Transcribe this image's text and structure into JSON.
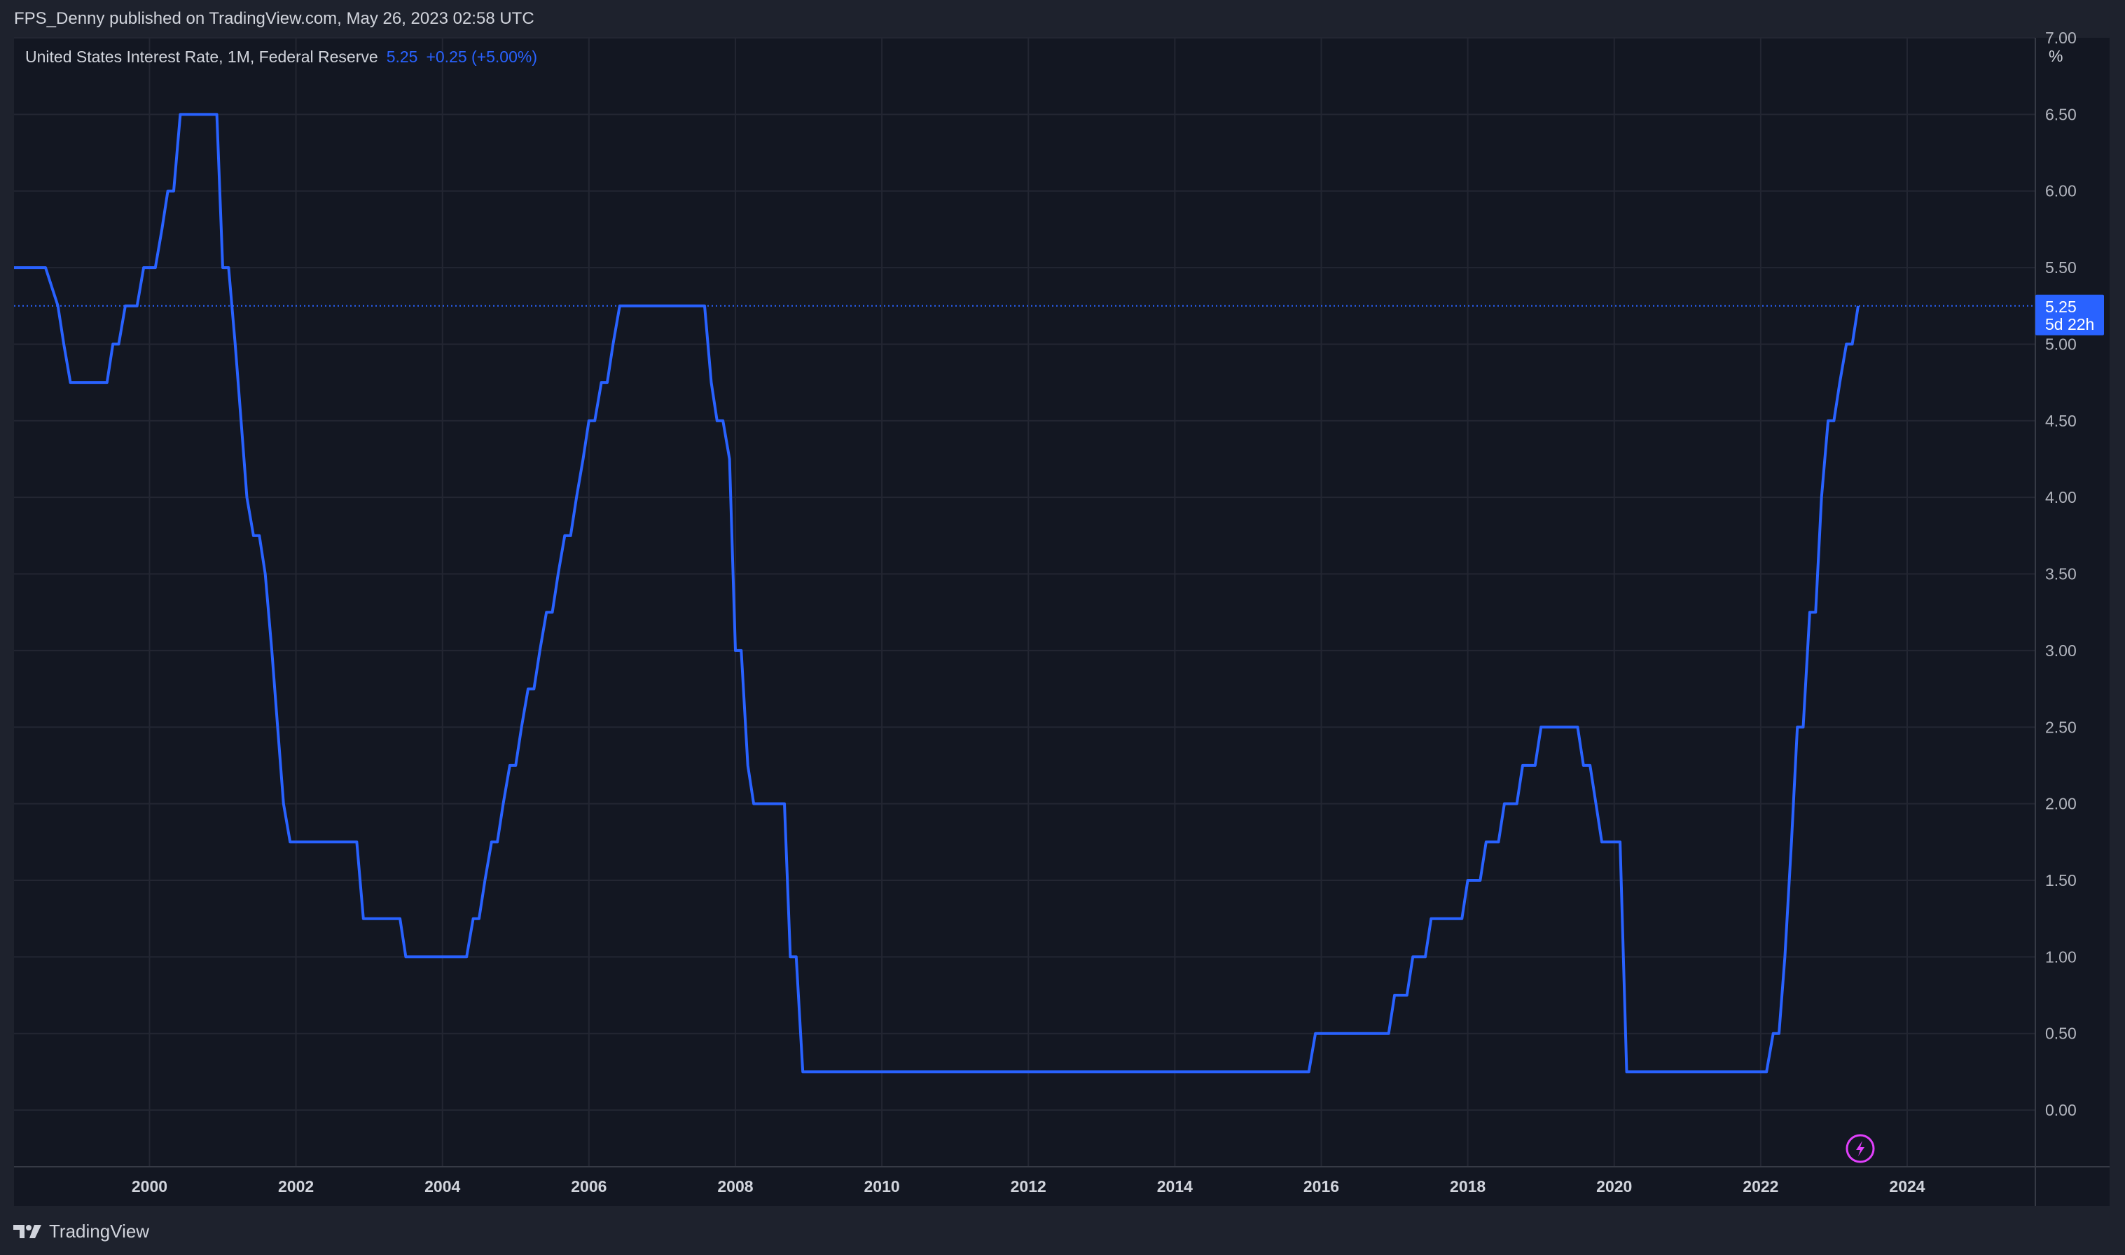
{
  "header": {
    "publish_text": "FPS_Denny published on TradingView.com, May 26, 2023 02:58 UTC"
  },
  "legend": {
    "symbol": "United States Interest Rate, 1M, Federal Reserve",
    "last": "5.25",
    "change": "+0.25 (+5.00%)"
  },
  "price_label": {
    "value": "5.25",
    "countdown": "5d 22h"
  },
  "axis_unit": "%",
  "footer": {
    "brand": "TradingView"
  },
  "icons": {
    "logo": "tradingview-logo-icon",
    "flash": "lightning-icon"
  },
  "colors": {
    "line": "#2962ff",
    "background": "#131722",
    "grid": "#232632",
    "accent_flash": "#e040fb"
  },
  "chart_data": {
    "type": "line",
    "title": "",
    "xlabel": "",
    "ylabel": "%",
    "xlim": [
      1998.15,
      2025.75
    ],
    "ylim": [
      -0.37,
      7.0
    ],
    "grid": true,
    "x_ticks": [
      "2000",
      "2002",
      "2004",
      "2006",
      "2008",
      "2010",
      "2012",
      "2014",
      "2016",
      "2018",
      "2020",
      "2022",
      "2024"
    ],
    "y_ticks": [
      "7.00",
      "6.50",
      "6.00",
      "5.50",
      "5.00",
      "4.50",
      "4.00",
      "3.50",
      "3.00",
      "2.50",
      "2.00",
      "1.50",
      "1.00",
      "0.50",
      "0.00"
    ],
    "series": [
      {
        "values": [
          [
            1998.15,
            5.5
          ],
          [
            1998.58,
            5.5
          ],
          [
            1998.75,
            5.25
          ],
          [
            1998.83,
            5.0
          ],
          [
            1998.92,
            4.75
          ],
          [
            1999.33,
            4.75
          ],
          [
            1999.42,
            4.75
          ],
          [
            1999.5,
            5.0
          ],
          [
            1999.58,
            5.0
          ],
          [
            1999.67,
            5.25
          ],
          [
            1999.83,
            5.25
          ],
          [
            1999.92,
            5.5
          ],
          [
            2000.0,
            5.5
          ],
          [
            2000.08,
            5.5
          ],
          [
            2000.17,
            5.75
          ],
          [
            2000.25,
            6.0
          ],
          [
            2000.33,
            6.0
          ],
          [
            2000.42,
            6.5
          ],
          [
            2000.5,
            6.5
          ],
          [
            2000.92,
            6.5
          ],
          [
            2001.0,
            5.5
          ],
          [
            2001.08,
            5.5
          ],
          [
            2001.17,
            5.0
          ],
          [
            2001.25,
            4.5
          ],
          [
            2001.33,
            4.0
          ],
          [
            2001.42,
            3.75
          ],
          [
            2001.5,
            3.75
          ],
          [
            2001.58,
            3.5
          ],
          [
            2001.67,
            3.0
          ],
          [
            2001.75,
            2.5
          ],
          [
            2001.83,
            2.0
          ],
          [
            2001.92,
            1.75
          ],
          [
            2002.0,
            1.75
          ],
          [
            2002.75,
            1.75
          ],
          [
            2002.83,
            1.75
          ],
          [
            2002.92,
            1.25
          ],
          [
            2003.42,
            1.25
          ],
          [
            2003.5,
            1.0
          ],
          [
            2004.33,
            1.0
          ],
          [
            2004.42,
            1.25
          ],
          [
            2004.5,
            1.25
          ],
          [
            2004.58,
            1.5
          ],
          [
            2004.67,
            1.75
          ],
          [
            2004.75,
            1.75
          ],
          [
            2004.83,
            2.0
          ],
          [
            2004.92,
            2.25
          ],
          [
            2005.0,
            2.25
          ],
          [
            2005.08,
            2.5
          ],
          [
            2005.17,
            2.75
          ],
          [
            2005.25,
            2.75
          ],
          [
            2005.33,
            3.0
          ],
          [
            2005.42,
            3.25
          ],
          [
            2005.5,
            3.25
          ],
          [
            2005.58,
            3.5
          ],
          [
            2005.67,
            3.75
          ],
          [
            2005.75,
            3.75
          ],
          [
            2005.83,
            4.0
          ],
          [
            2005.92,
            4.25
          ],
          [
            2006.0,
            4.5
          ],
          [
            2006.08,
            4.5
          ],
          [
            2006.17,
            4.75
          ],
          [
            2006.25,
            4.75
          ],
          [
            2006.33,
            5.0
          ],
          [
            2006.42,
            5.25
          ],
          [
            2007.58,
            5.25
          ],
          [
            2007.67,
            4.75
          ],
          [
            2007.75,
            4.5
          ],
          [
            2007.83,
            4.5
          ],
          [
            2007.92,
            4.25
          ],
          [
            2008.0,
            3.0
          ],
          [
            2008.08,
            3.0
          ],
          [
            2008.17,
            2.25
          ],
          [
            2008.25,
            2.0
          ],
          [
            2008.67,
            2.0
          ],
          [
            2008.75,
            1.0
          ],
          [
            2008.83,
            1.0
          ],
          [
            2008.92,
            0.25
          ],
          [
            2015.83,
            0.25
          ],
          [
            2015.92,
            0.5
          ],
          [
            2016.83,
            0.5
          ],
          [
            2016.92,
            0.5
          ],
          [
            2017.0,
            0.75
          ],
          [
            2017.17,
            0.75
          ],
          [
            2017.25,
            1.0
          ],
          [
            2017.42,
            1.0
          ],
          [
            2017.5,
            1.25
          ],
          [
            2017.92,
            1.25
          ],
          [
            2018.0,
            1.5
          ],
          [
            2018.17,
            1.5
          ],
          [
            2018.25,
            1.75
          ],
          [
            2018.42,
            1.75
          ],
          [
            2018.5,
            2.0
          ],
          [
            2018.67,
            2.0
          ],
          [
            2018.75,
            2.25
          ],
          [
            2018.92,
            2.25
          ],
          [
            2019.0,
            2.5
          ],
          [
            2019.5,
            2.5
          ],
          [
            2019.58,
            2.25
          ],
          [
            2019.67,
            2.25
          ],
          [
            2019.75,
            2.0
          ],
          [
            2019.83,
            1.75
          ],
          [
            2020.08,
            1.75
          ],
          [
            2020.17,
            0.25
          ],
          [
            2022.08,
            0.25
          ],
          [
            2022.17,
            0.5
          ],
          [
            2022.25,
            0.5
          ],
          [
            2022.33,
            1.0
          ],
          [
            2022.42,
            1.75
          ],
          [
            2022.5,
            2.5
          ],
          [
            2022.58,
            2.5
          ],
          [
            2022.67,
            3.25
          ],
          [
            2022.75,
            3.25
          ],
          [
            2022.83,
            4.0
          ],
          [
            2022.92,
            4.5
          ],
          [
            2023.0,
            4.5
          ],
          [
            2023.08,
            4.75
          ],
          [
            2023.17,
            5.0
          ],
          [
            2023.25,
            5.0
          ],
          [
            2023.33,
            5.25
          ]
        ]
      }
    ]
  }
}
